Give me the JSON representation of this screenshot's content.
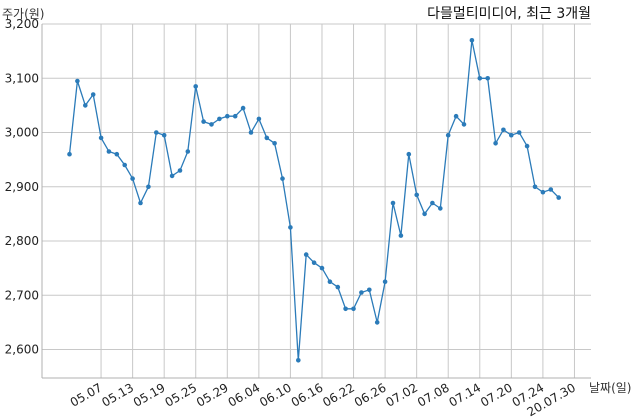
{
  "chart_data": {
    "type": "line",
    "title": "다믈멀티미디어, 최근 3개월",
    "ylabel": "주가(원)",
    "xlabel": "날짜(일)",
    "ylim": [
      2550,
      3200
    ],
    "yticks": [
      2600,
      2700,
      2800,
      2900,
      3000,
      3100,
      3200
    ],
    "ytick_labels": [
      "2,600",
      "2,700",
      "2,800",
      "2,900",
      "3,000",
      "3,100",
      "3,200"
    ],
    "xticks": [
      "05.07",
      "05.13",
      "05.19",
      "05.25",
      "05.29",
      "06.04",
      "06.10",
      "06.16",
      "06.22",
      "06.26",
      "07.02",
      "07.08",
      "07.14",
      "07.20",
      "07.24",
      "20.07.30"
    ],
    "xtick_index": [
      4,
      8,
      12,
      16,
      20,
      24,
      28,
      32,
      36,
      40,
      44,
      48,
      52,
      56,
      60,
      64
    ],
    "grid": true,
    "line_color": "#2b7bb9",
    "values": [
      2960,
      3095,
      3050,
      3070,
      2990,
      2965,
      2960,
      2940,
      2915,
      2870,
      2900,
      3000,
      2995,
      2920,
      2930,
      2965,
      3085,
      3020,
      3015,
      3025,
      3030,
      3030,
      3045,
      3000,
      3025,
      2990,
      2980,
      2915,
      2825,
      2580,
      2775,
      2760,
      2750,
      2725,
      2715,
      2675,
      2675,
      2705,
      2710,
      2650,
      2725,
      2870,
      2810,
      2960,
      2885,
      2850,
      2870,
      2860,
      2995,
      3030,
      3015,
      3170,
      3100,
      3100,
      2980,
      3005,
      2995,
      3000,
      2975,
      2900,
      2890,
      2895,
      2880
    ]
  }
}
